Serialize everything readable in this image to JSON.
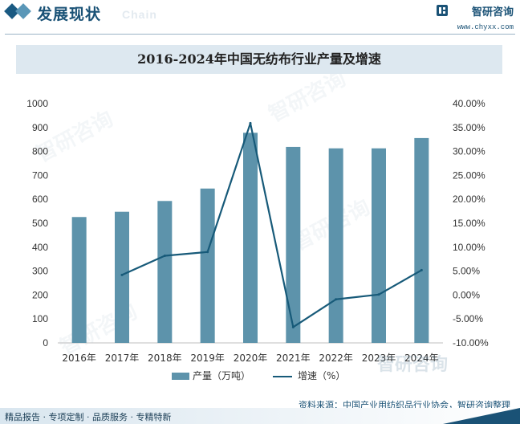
{
  "header": {
    "title": "发展现状",
    "ghost_text": "Chain",
    "brand_name": "智研咨询",
    "brand_url": "www.chyxx.com"
  },
  "chart_data": {
    "type": "bar",
    "title": "2016-2024年中国无纺布行业产量及增速",
    "categories": [
      "2016年",
      "2017年",
      "2018年",
      "2019年",
      "2020年",
      "2021年",
      "2022年",
      "2023年",
      "2024年"
    ],
    "series": [
      {
        "name": "产量（万吨）",
        "type": "bar",
        "axis": "left",
        "color": "#5d93ab",
        "values": [
          526,
          548,
          593,
          645,
          878,
          819,
          813,
          813,
          856
        ]
      },
      {
        "name": "增速（%）",
        "type": "line",
        "axis": "right",
        "color": "#175a79",
        "values": [
          null,
          4.2,
          8.2,
          9.0,
          35.9,
          -6.7,
          -0.9,
          0.1,
          5.2
        ]
      }
    ],
    "y_left": {
      "ylim": [
        0,
        1000
      ],
      "ticks": [
        "0",
        "100",
        "200",
        "300",
        "400",
        "500",
        "600",
        "700",
        "800",
        "900",
        "1000"
      ]
    },
    "y_right": {
      "ylim": [
        -10,
        40
      ],
      "ticks": [
        "-10.00%",
        "-5.00%",
        "0.00%",
        "5.00%",
        "10.00%",
        "15.00%",
        "20.00%",
        "25.00%",
        "30.00%",
        "35.00%",
        "40.00%"
      ]
    },
    "grid": false,
    "legend_position": "bottom"
  },
  "legend": {
    "bar_label": "产量（万吨）",
    "line_label": "增速（%）"
  },
  "watermark": {
    "text": "智研咨询",
    "logo_text": "智研咨询"
  },
  "source": "资料来源：中国产业用纺织品行业协会，智研咨询整理",
  "footer": {
    "tagline": "精品报告 · 专项定制 · 品质服务 · 专精特新"
  }
}
